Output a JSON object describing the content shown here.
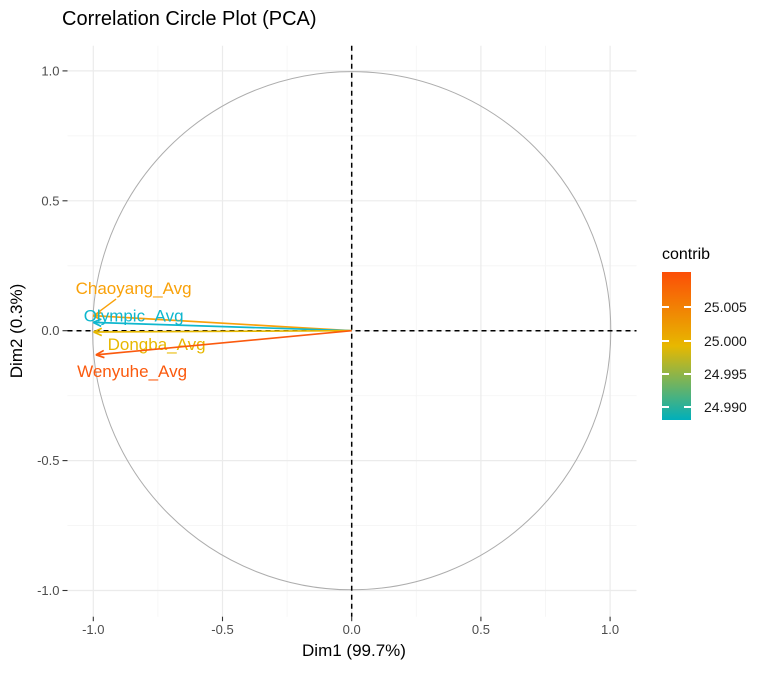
{
  "chart_data": {
    "type": "correlation_circle",
    "title": "Correlation Circle Plot (PCA)",
    "xlabel": "Dim1 (99.7%)",
    "ylabel": "Dim2 (0.3%)",
    "xlim": [
      -1.1,
      1.1
    ],
    "ylim": [
      -1.1,
      1.1
    ],
    "grid": true,
    "unit_circle": true,
    "zero_lines_dashed": true,
    "x_ticks": [
      {
        "value": -1.0,
        "label": "-1.0"
      },
      {
        "value": -0.5,
        "label": "-0.5"
      },
      {
        "value": 0.0,
        "label": "0.0"
      },
      {
        "value": 0.5,
        "label": "0.5"
      },
      {
        "value": 1.0,
        "label": "1.0"
      }
    ],
    "y_ticks": [
      {
        "value": -1.0,
        "label": "-1.0"
      },
      {
        "value": -0.5,
        "label": "-0.5"
      },
      {
        "value": 0.0,
        "label": "0.0"
      },
      {
        "value": 0.5,
        "label": "0.5"
      },
      {
        "value": 1.0,
        "label": "1.0"
      }
    ],
    "minor_ticks": [
      -0.75,
      -0.25,
      0.25,
      0.75
    ],
    "variables": [
      {
        "name": "Chaoyang_Avg",
        "x": -1.001,
        "y": 0.058,
        "color": "#F9A109",
        "label_x": -0.844,
        "label_y": 0.163,
        "leader_from": [
          -0.912,
          0.122
        ]
      },
      {
        "name": "Olympic_Avg",
        "x": -1.001,
        "y": 0.032,
        "color": "#0FB7CE",
        "label_x": -0.844,
        "label_y": 0.057
      },
      {
        "name": "Dongba_Avg",
        "x": -0.999,
        "y": -0.005,
        "color": "#E7B800",
        "label_x": -0.755,
        "label_y": -0.053
      },
      {
        "name": "Wenyuhe_Avg",
        "x": -0.99,
        "y": -0.093,
        "color": "#FB5A0E",
        "label_x": -0.85,
        "label_y": -0.157
      }
    ],
    "legend": {
      "title": "contrib",
      "domain": [
        24.9881,
        25.0103
      ],
      "ticks": [
        {
          "value": 25.005,
          "label": "25.005"
        },
        {
          "value": 25.0,
          "label": "25.000"
        },
        {
          "value": 24.995,
          "label": "24.995"
        },
        {
          "value": 24.99,
          "label": "24.990"
        }
      ],
      "gradient_high": "#FC4E07",
      "gradient_mid": "#E7B800",
      "gradient_low": "#00AFBB"
    },
    "colors": {
      "grid_major": "#EBEBEB",
      "grid_minor": "#F5F5F5",
      "circle": "#ADADAD",
      "zero_line": "#000000",
      "tick_mark": "#333333",
      "tick_label": "#4D4D4D",
      "axis_title": "#000000",
      "title": "#000000",
      "background": "#FFFFFF"
    }
  }
}
